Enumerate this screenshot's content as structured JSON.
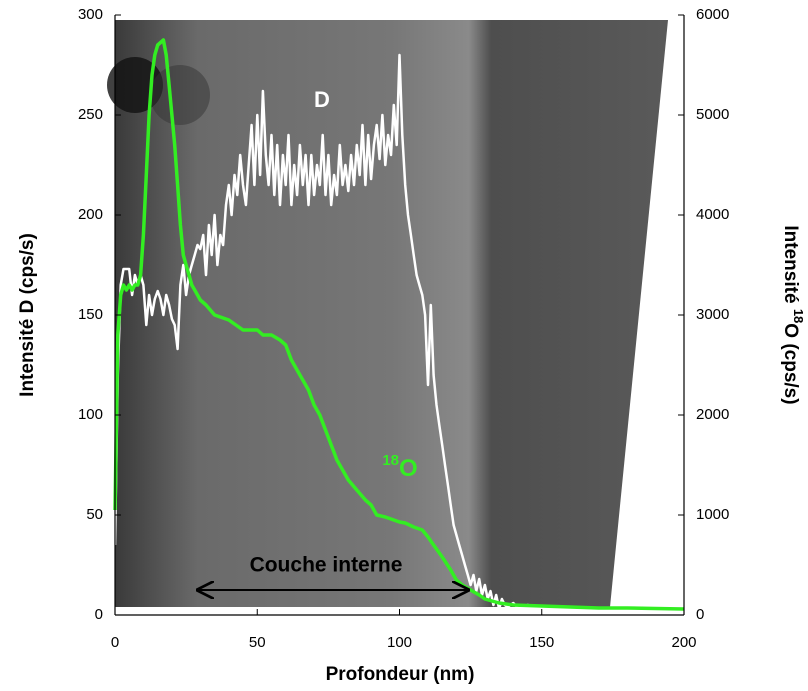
{
  "chart_data": {
    "type": "line",
    "xlabel": "Profondeur (nm)",
    "ylabel": "Intensité D (cps/s)",
    "y2label": {
      "before": "Intensité ",
      "sup": "18",
      "after": "O (cps/s)"
    },
    "xlim": [
      0,
      200
    ],
    "xticks": [
      0,
      50,
      100,
      150,
      200
    ],
    "ylim": [
      0,
      300
    ],
    "yticks": [
      0,
      50,
      100,
      150,
      200,
      250,
      300
    ],
    "y2lim": [
      0,
      6000
    ],
    "y2ticks": [
      0,
      1000,
      2000,
      3000,
      4000,
      5000,
      6000
    ],
    "annotation": "Couche interne",
    "series": [
      {
        "name": "D",
        "color": "#ffffff",
        "x": [
          0,
          1,
          2,
          3,
          5,
          6,
          7,
          8,
          9,
          10,
          11,
          12,
          13,
          14,
          15,
          16,
          17,
          18,
          19,
          20,
          21,
          22,
          23,
          24,
          25,
          26,
          27,
          28,
          29,
          30,
          31,
          32,
          33,
          34,
          35,
          36,
          37,
          38,
          39,
          40,
          41,
          42,
          43,
          44,
          45,
          46,
          47,
          48,
          49,
          50,
          51,
          52,
          53,
          54,
          55,
          56,
          57,
          58,
          59,
          60,
          61,
          62,
          63,
          64,
          65,
          66,
          67,
          68,
          69,
          70,
          71,
          72,
          73,
          74,
          75,
          76,
          77,
          78,
          79,
          80,
          81,
          82,
          83,
          84,
          85,
          86,
          87,
          88,
          89,
          90,
          91,
          92,
          93,
          94,
          95,
          96,
          97,
          98,
          99,
          100,
          101,
          102,
          103,
          104,
          105,
          106,
          107,
          108,
          109,
          110,
          111,
          112,
          113,
          114,
          115,
          116,
          117,
          118,
          119,
          120,
          121,
          122,
          123,
          124,
          125,
          126,
          127,
          128,
          129,
          130,
          131,
          132,
          133,
          134,
          135,
          136,
          137,
          138,
          140,
          142,
          145,
          150
        ],
        "values": [
          35,
          120,
          165,
          173,
          173,
          160,
          170,
          165,
          170,
          165,
          145,
          160,
          150,
          158,
          162,
          158,
          150,
          160,
          155,
          148,
          145,
          133,
          165,
          175,
          160,
          170,
          175,
          180,
          185,
          183,
          190,
          170,
          195,
          180,
          200,
          175,
          190,
          185,
          205,
          215,
          200,
          220,
          210,
          230,
          215,
          205,
          225,
          245,
          215,
          250,
          220,
          262,
          230,
          215,
          240,
          210,
          235,
          205,
          230,
          215,
          240,
          205,
          225,
          210,
          235,
          215,
          230,
          205,
          230,
          210,
          225,
          215,
          240,
          210,
          230,
          205,
          220,
          210,
          235,
          215,
          225,
          212,
          230,
          215,
          235,
          220,
          245,
          215,
          240,
          218,
          235,
          245,
          228,
          250,
          225,
          240,
          230,
          255,
          235,
          280,
          240,
          215,
          200,
          190,
          180,
          170,
          165,
          160,
          150,
          115,
          155,
          120,
          105,
          95,
          85,
          75,
          65,
          55,
          45,
          40,
          35,
          30,
          25,
          20,
          15,
          20,
          12,
          18,
          10,
          15,
          8,
          12,
          5,
          10,
          3,
          8,
          5,
          4,
          6,
          3,
          5,
          4
        ]
      },
      {
        "name": "O",
        "name_sup": "18",
        "color": "#33ee22",
        "axis": "y2",
        "x": [
          0,
          1,
          2,
          3,
          4,
          5,
          6,
          7,
          8,
          9,
          10,
          11,
          12,
          13,
          14,
          15,
          17,
          18,
          19,
          20,
          21,
          22,
          23,
          24,
          25,
          26,
          27,
          28,
          30,
          32,
          35,
          40,
          45,
          50,
          52,
          55,
          58,
          60,
          62,
          65,
          68,
          70,
          72,
          74,
          76,
          78,
          80,
          82,
          85,
          88,
          90,
          92,
          95,
          98,
          100,
          102,
          105,
          108,
          110,
          112,
          115,
          118,
          120,
          122,
          125,
          128,
          130,
          135,
          140,
          150,
          160,
          170,
          180,
          190,
          200
        ],
        "values": [
          1050,
          2800,
          3200,
          3300,
          3250,
          3300,
          3250,
          3300,
          3300,
          3400,
          3800,
          4400,
          5000,
          5400,
          5600,
          5700,
          5750,
          5600,
          5300,
          5000,
          4700,
          4300,
          3900,
          3600,
          3500,
          3400,
          3300,
          3250,
          3150,
          3100,
          3000,
          2950,
          2850,
          2850,
          2800,
          2800,
          2750,
          2700,
          2550,
          2400,
          2250,
          2100,
          2000,
          1850,
          1700,
          1550,
          1450,
          1350,
          1250,
          1150,
          1100,
          1000,
          980,
          950,
          930,
          920,
          880,
          850,
          780,
          700,
          580,
          450,
          350,
          300,
          250,
          200,
          160,
          120,
          100,
          90,
          80,
          70,
          70,
          65,
          60
        ]
      }
    ]
  }
}
